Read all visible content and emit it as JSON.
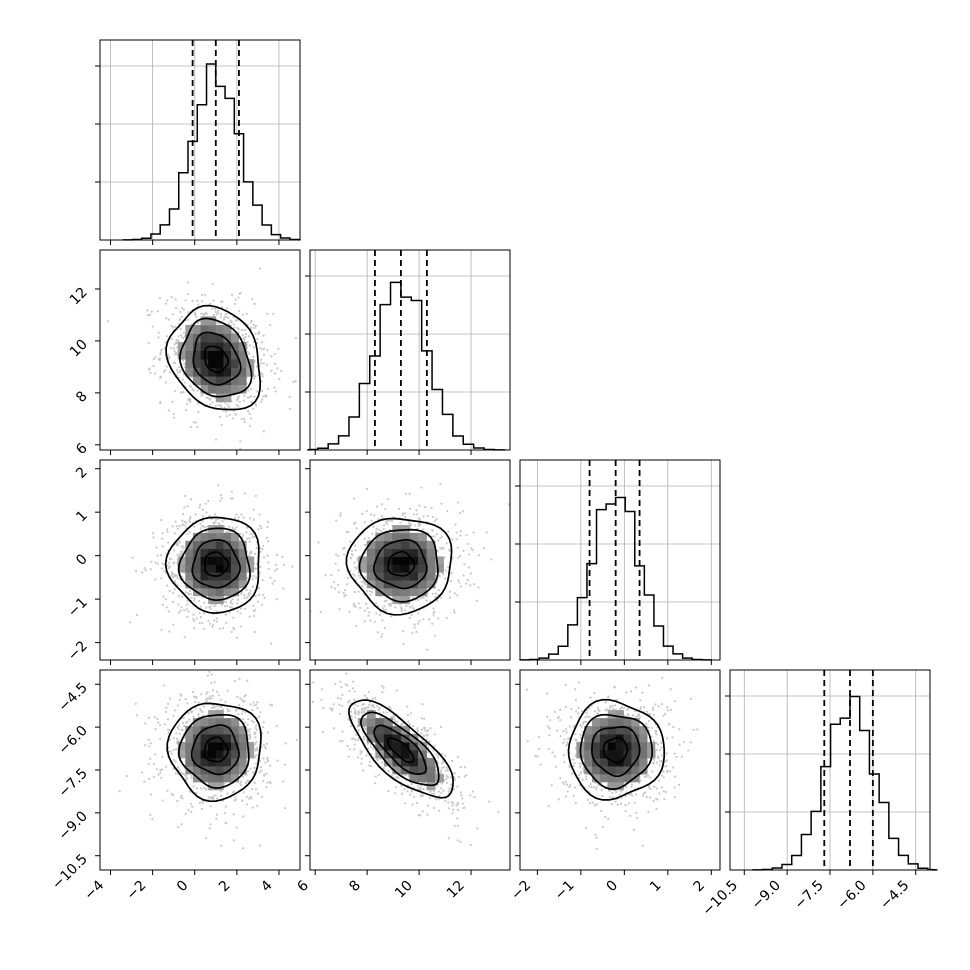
{
  "chart_data": {
    "type": "corner",
    "title": "",
    "parameters": [
      {
        "index": 0,
        "range": [
          -4.5,
          5.0
        ],
        "ticks": [
          -4,
          -2,
          0,
          2,
          4
        ],
        "tick_labels": [
          "−4",
          "−2",
          "0",
          "2",
          "4"
        ],
        "mean": 1.0,
        "sd": 1.1,
        "quantiles": [
          -0.1,
          1.0,
          2.1
        ]
      },
      {
        "index": 1,
        "range": [
          5.8,
          13.5
        ],
        "ticks": [
          6,
          8,
          10,
          12
        ],
        "tick_labels": [
          "6",
          "8",
          "10",
          "12"
        ],
        "mean": 9.3,
        "sd": 1.0,
        "quantiles": [
          8.3,
          9.3,
          10.3
        ]
      },
      {
        "index": 2,
        "range": [
          -2.4,
          2.2
        ],
        "ticks": [
          -2,
          -1,
          0,
          1,
          2
        ],
        "tick_labels": [
          "−2",
          "−1",
          "0",
          "1",
          "2"
        ],
        "mean": -0.2,
        "sd": 0.55,
        "quantiles": [
          -0.8,
          -0.2,
          0.35
        ]
      },
      {
        "index": 3,
        "range": [
          -11.0,
          -4.0
        ],
        "ticks": [
          -10.5,
          -9.0,
          -7.5,
          -6.0,
          -4.5
        ],
        "tick_labels": [
          "−10.5",
          "−9.0",
          "−7.5",
          "−6.0",
          "−4.5"
        ],
        "mean": -6.8,
        "sd": 0.85,
        "quantiles": [
          -7.7,
          -6.8,
          -6.0
        ]
      }
    ],
    "correlations": {
      "1-0": -0.2,
      "2-0": 0.0,
      "2-1": 0.0,
      "3-0": 0.0,
      "3-1": -0.75,
      "3-2": 0.0
    },
    "grid": true,
    "contour_levels_sigma": [
      0.5,
      1.0,
      1.5,
      2.0
    ]
  }
}
